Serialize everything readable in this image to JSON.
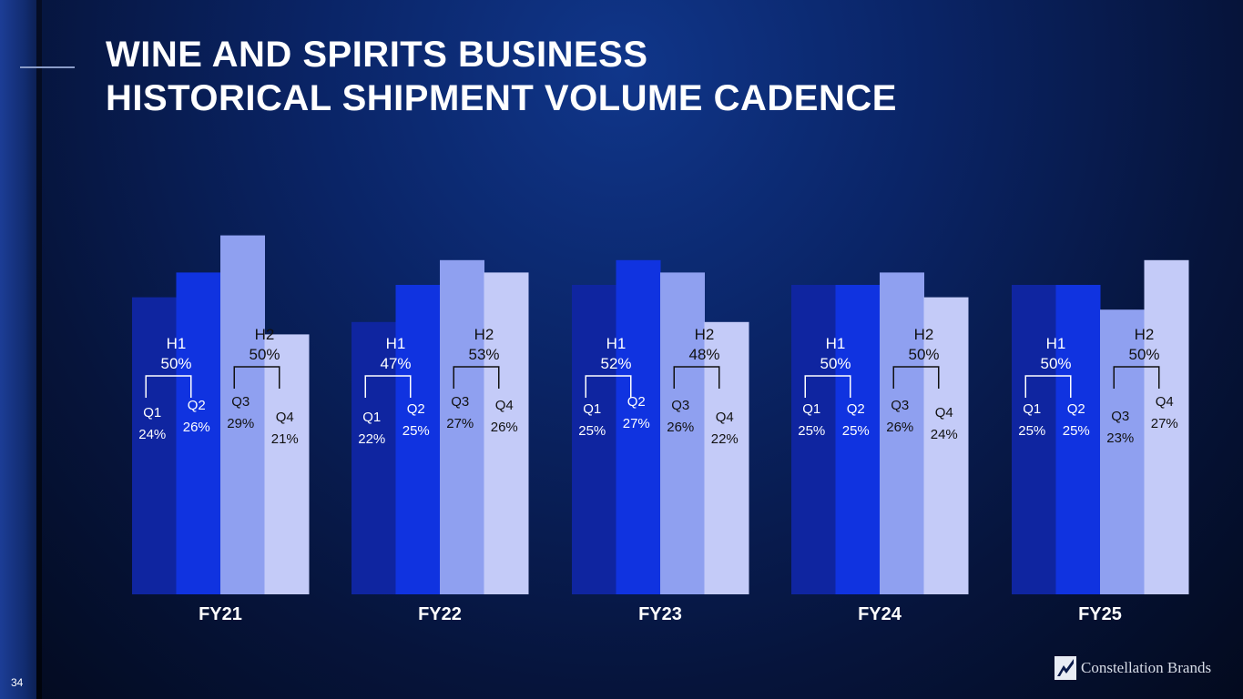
{
  "title_lines": [
    "WINE AND SPIRITS BUSINESS",
    "HISTORICAL SHIPMENT VOLUME CADENCE"
  ],
  "page_number": "34",
  "logo_text": "Constellation Brands",
  "colors": {
    "Q1": "#0f25a0",
    "Q2": "#1033e0",
    "Q3": "#8fa0f0",
    "Q4": "#c4cbf8",
    "label_light": "#ffffff",
    "label_dark": "#111111"
  },
  "chart_data": {
    "type": "bar",
    "categories": [
      "FY21",
      "FY22",
      "FY23",
      "FY24",
      "FY25"
    ],
    "quarters": [
      "Q1",
      "Q2",
      "Q3",
      "Q4"
    ],
    "series": [
      {
        "name": "Q1",
        "values": [
          24,
          22,
          25,
          25,
          25
        ]
      },
      {
        "name": "Q2",
        "values": [
          26,
          25,
          27,
          25,
          25
        ]
      },
      {
        "name": "Q3",
        "values": [
          29,
          27,
          26,
          26,
          23
        ]
      },
      {
        "name": "Q4",
        "values": [
          21,
          26,
          22,
          24,
          27
        ]
      }
    ],
    "halves": [
      {
        "fy": "FY21",
        "H1": "50%",
        "H2": "50%"
      },
      {
        "fy": "FY22",
        "H1": "47%",
        "H2": "53%"
      },
      {
        "fy": "FY23",
        "H1": "52%",
        "H2": "48%"
      },
      {
        "fy": "FY24",
        "H1": "50%",
        "H2": "50%"
      },
      {
        "fy": "FY25",
        "H1": "50%",
        "H2": "50%"
      }
    ],
    "half_names": [
      "H1",
      "H2"
    ],
    "value_suffix": "%",
    "title": "",
    "xlabel": "",
    "ylabel": "",
    "grid": false,
    "legend": "none"
  }
}
